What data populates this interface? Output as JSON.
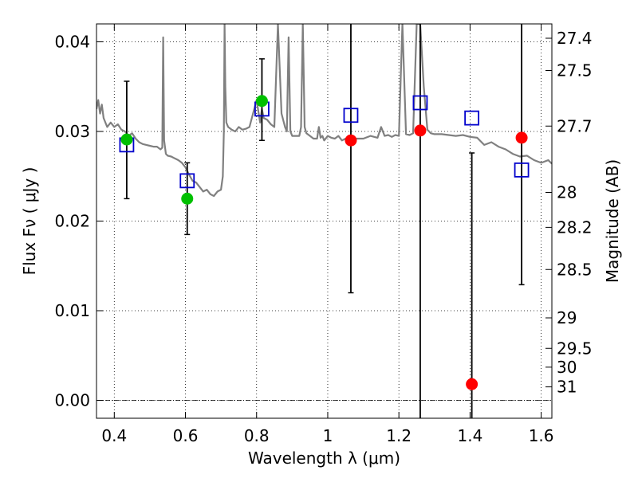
{
  "chart_data": {
    "type": "scatter",
    "xlabel": "Wavelength  λ (μm)",
    "ylabel": "Flux  Fν  ( μJy )",
    "ylabel_right": "Magnitude (AB)",
    "xlim": [
      0.35,
      1.63
    ],
    "ylim": [
      -0.002,
      0.042
    ],
    "grid": true,
    "x_ticks": [
      0.4,
      0.6,
      0.8,
      1.0,
      1.2,
      1.4,
      1.6
    ],
    "x_tick_labels": [
      "0.4",
      "0.6",
      "0.8",
      "1",
      "1.2",
      "1.4",
      "1.6"
    ],
    "y_ticks": [
      0.0,
      0.01,
      0.02,
      0.03,
      0.04
    ],
    "y_tick_labels": [
      "0.00",
      "0.01",
      "0.02",
      "0.03",
      "0.04"
    ],
    "mag_ticks": [
      {
        "label": "27.4",
        "y": 0.0404
      },
      {
        "label": "27.5",
        "y": 0.0368
      },
      {
        "label": "27.7",
        "y": 0.0306
      },
      {
        "label": "28",
        "y": 0.0232
      },
      {
        "label": "28.2",
        "y": 0.0193
      },
      {
        "label": "28.5",
        "y": 0.0146
      },
      {
        "label": "29",
        "y": 0.0092
      },
      {
        "label": "29.5",
        "y": 0.0058
      },
      {
        "label": "30",
        "y": 0.0037
      },
      {
        "label": "31",
        "y": 0.0015
      }
    ],
    "zero_line": 0.0,
    "series": [
      {
        "marker": "circle",
        "colors": [
          "#00c000",
          "#00c000",
          "#00c000",
          "#ff0000",
          "#ff0000",
          "#ff0000",
          "#ff0000"
        ],
        "x": [
          0.435,
          0.605,
          0.815,
          1.065,
          1.26,
          1.405,
          1.545
        ],
        "y": [
          0.0291,
          0.0225,
          0.0334,
          0.029,
          0.0301,
          0.0018,
          0.0293
        ],
        "yerr_low": [
          0.0225,
          0.0185,
          0.029,
          0.012,
          -0.002,
          -0.002,
          0.0129
        ],
        "yerr_high": [
          0.0356,
          0.0265,
          0.0381,
          0.042,
          0.042,
          0.0276,
          0.042
        ]
      },
      {
        "marker": "open-square",
        "color": "#0000cc",
        "x": [
          0.435,
          0.605,
          0.815,
          1.065,
          1.26,
          1.405,
          1.545
        ],
        "y": [
          0.0285,
          0.0245,
          0.0325,
          0.0318,
          0.0332,
          0.0315,
          0.0257
        ]
      },
      {
        "marker": "line",
        "color": "#808080",
        "x": [
          0.35,
          0.355,
          0.36,
          0.365,
          0.37,
          0.38,
          0.39,
          0.4,
          0.41,
          0.42,
          0.43,
          0.44,
          0.45,
          0.46,
          0.47,
          0.48,
          0.49,
          0.5,
          0.51,
          0.52,
          0.53,
          0.535,
          0.5375,
          0.54,
          0.545,
          0.55,
          0.56,
          0.57,
          0.58,
          0.59,
          0.6,
          0.61,
          0.62,
          0.63,
          0.64,
          0.65,
          0.66,
          0.67,
          0.68,
          0.69,
          0.7,
          0.705,
          0.708,
          0.71,
          0.712,
          0.715,
          0.72,
          0.73,
          0.74,
          0.75,
          0.76,
          0.77,
          0.78,
          0.79,
          0.8,
          0.81,
          0.815,
          0.82,
          0.83,
          0.84,
          0.85,
          0.86,
          0.87,
          0.88,
          0.885,
          0.89,
          0.895,
          0.9,
          0.91,
          0.92,
          0.925,
          0.93,
          0.935,
          0.94,
          0.95,
          0.96,
          0.97,
          0.975,
          0.98,
          0.985,
          0.99,
          1.0,
          1.01,
          1.02,
          1.03,
          1.04,
          1.05,
          1.06,
          1.08,
          1.1,
          1.12,
          1.14,
          1.15,
          1.16,
          1.17,
          1.18,
          1.19,
          1.2,
          1.21,
          1.22,
          1.23,
          1.24,
          1.25,
          1.26,
          1.27,
          1.28,
          1.29,
          1.3,
          1.32,
          1.34,
          1.36,
          1.38,
          1.4,
          1.42,
          1.44,
          1.46,
          1.48,
          1.5,
          1.52,
          1.54,
          1.56,
          1.58,
          1.6,
          1.62,
          1.63
        ],
        "y": [
          0.0325,
          0.0335,
          0.032,
          0.033,
          0.0315,
          0.0305,
          0.031,
          0.0305,
          0.0308,
          0.0302,
          0.03,
          0.0295,
          0.0298,
          0.0292,
          0.0288,
          0.0286,
          0.0285,
          0.0284,
          0.0283,
          0.0283,
          0.028,
          0.0282,
          0.0405,
          0.029,
          0.0275,
          0.0273,
          0.0272,
          0.027,
          0.0268,
          0.0265,
          0.026,
          0.0252,
          0.0245,
          0.0243,
          0.0238,
          0.0233,
          0.0235,
          0.023,
          0.0228,
          0.0233,
          0.0235,
          0.025,
          0.03,
          0.042,
          0.035,
          0.031,
          0.0305,
          0.0302,
          0.03,
          0.0305,
          0.0302,
          0.0303,
          0.0305,
          0.032,
          0.0335,
          0.031,
          0.0325,
          0.0315,
          0.0313,
          0.0308,
          0.0305,
          0.042,
          0.032,
          0.0305,
          0.03,
          0.0405,
          0.03,
          0.0295,
          0.0295,
          0.0295,
          0.0305,
          0.042,
          0.0305,
          0.0298,
          0.0295,
          0.0292,
          0.0292,
          0.0305,
          0.0293,
          0.0295,
          0.029,
          0.0295,
          0.0293,
          0.0292,
          0.0295,
          0.029,
          0.0292,
          0.029,
          0.0292,
          0.0292,
          0.0295,
          0.0293,
          0.0305,
          0.0295,
          0.0296,
          0.0294,
          0.0296,
          0.0295,
          0.042,
          0.0297,
          0.0296,
          0.0298,
          0.042,
          0.042,
          0.035,
          0.0302,
          0.0298,
          0.0297,
          0.0297,
          0.0296,
          0.0295,
          0.0296,
          0.0294,
          0.0293,
          0.0285,
          0.0288,
          0.0283,
          0.028,
          0.0275,
          0.0272,
          0.0273,
          0.0268,
          0.0265,
          0.0268,
          0.0264
        ]
      }
    ]
  }
}
